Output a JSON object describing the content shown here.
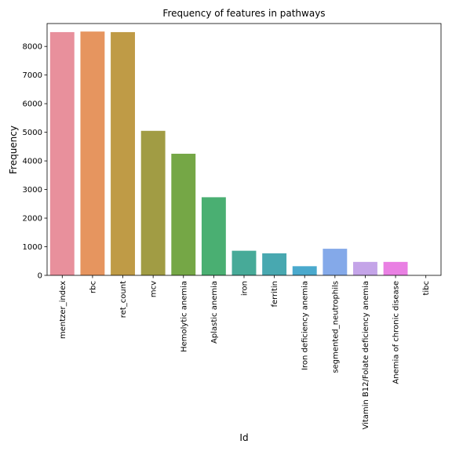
{
  "chart_data": {
    "type": "bar",
    "title": "Frequency of features in pathways",
    "xlabel": "Id",
    "ylabel": "Frequency",
    "ylim": [
      0,
      8800
    ],
    "yticks": [
      0,
      1000,
      2000,
      3000,
      4000,
      5000,
      6000,
      7000,
      8000
    ],
    "ytick_labels": [
      "0",
      "1000",
      "2000",
      "3000",
      "4000",
      "5000",
      "6000",
      "7000",
      "8000"
    ],
    "grid": false,
    "legend": "none",
    "categories": [
      "mentzer_index",
      "rbc",
      "ret_count",
      "mcv",
      "Hemolytic anemia",
      "Aplastic anemia",
      "iron",
      "ferritin",
      "Iron deficiency anemia",
      "segmented_neutrophils",
      "Vitamin B12/Folate deficiency anemia",
      "Anemia of chronic disease",
      "tibc"
    ],
    "values": [
      8500,
      8520,
      8500,
      5050,
      4250,
      2730,
      860,
      770,
      320,
      930,
      470,
      470,
      0
    ],
    "colors": [
      "#e8909c",
      "#e6955f",
      "#bf9b46",
      "#a19c44",
      "#75a746",
      "#4aaf72",
      "#47aa98",
      "#48a8b0",
      "#4aa9cd",
      "#84a9e9",
      "#c4a4e8",
      "#e980e3",
      "#ee8fc2"
    ]
  }
}
